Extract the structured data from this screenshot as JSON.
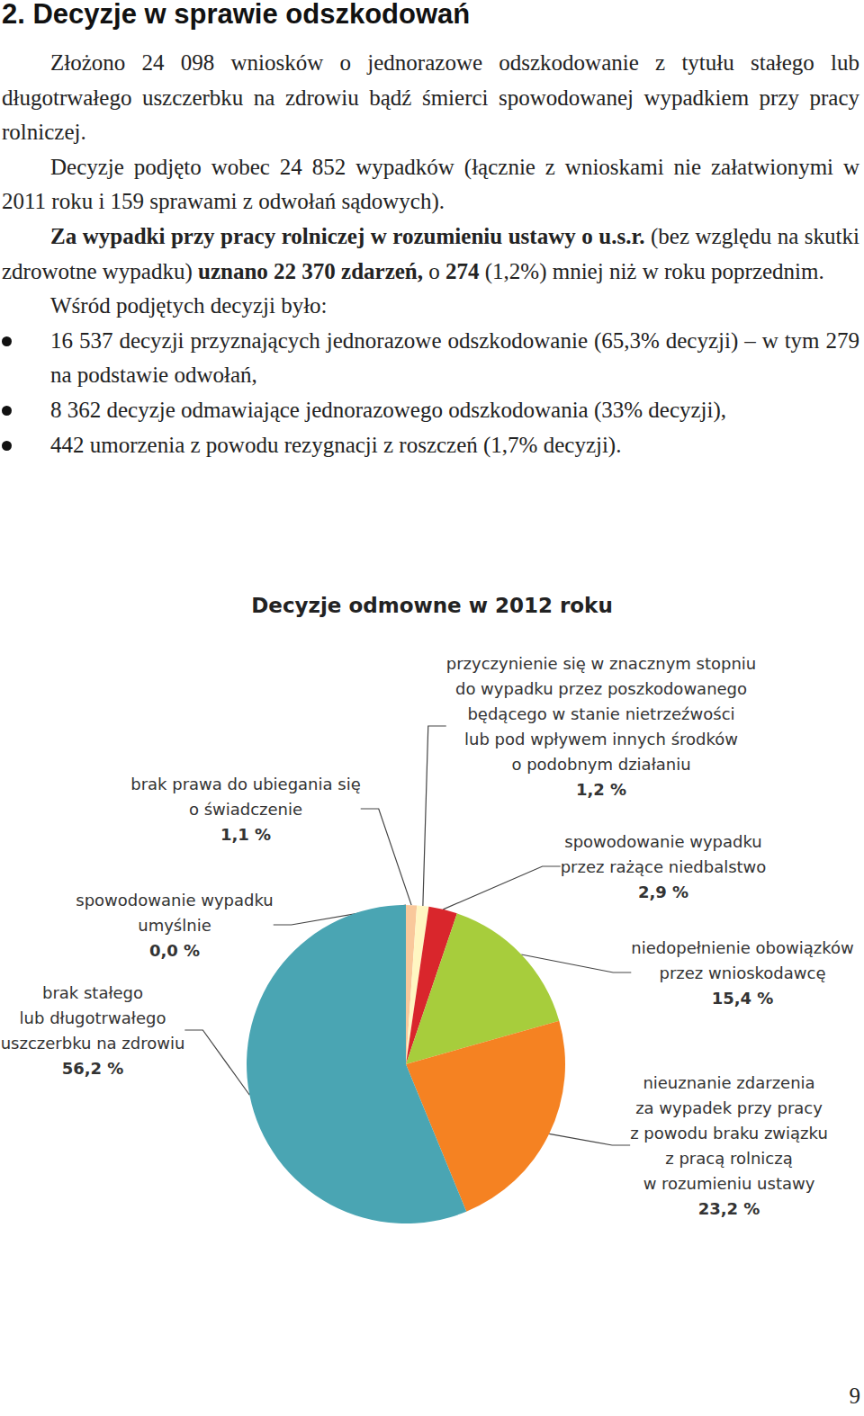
{
  "heading": "2. Decyzje w sprawie odszkodowań",
  "paragraphs": [
    [
      {
        "text": "Złożono 24 098 wniosków o jednorazowe odszkodowanie z tytułu stałego lub długotrwałego uszczerbku na zdrowiu bądź śmierci spowodowanej wypadkiem przy pracy rolniczej."
      }
    ],
    [
      {
        "text": "Decyzje podjęto wobec 24 852 wypadków (łącznie z wnioskami nie załatwionymi w 2011 roku i 159 sprawami z odwołań sądowych)."
      }
    ],
    [
      {
        "text": "Za wypadki przy pracy rolniczej w rozumieniu ustawy o u.s.r.",
        "bold": true
      },
      {
        "text": " (bez względu na skutki zdrowotne wypadku) "
      },
      {
        "text": "uznano 22 370 zdarzeń,",
        "bold": true
      },
      {
        "text": " o "
      },
      {
        "text": "274",
        "bold": true
      },
      {
        "text": " (1,2%) mniej niż w roku poprzednim."
      }
    ],
    [
      {
        "text": "Wśród podjętych decyzji było:"
      }
    ]
  ],
  "bullets": [
    "16 537 decyzji przyznających jednorazowe odszkodowanie (65,3% decyzji) – w tym 279 na podstawie odwołań,",
    "8 362 decyzje odmawiające jednorazowego odszkodowania (33% decyzji),",
    "442 umorzenia z powodu rezygnacji z roszczeń (1,7% decyzji)."
  ],
  "chart_data": {
    "type": "pie",
    "title": "Decyzje odmowne w 2012 roku",
    "categories": [
      "brak prawa do ubiegania się\no świadczenie",
      "przyczynienie się w znacznym stopniu\ndo wypadku przez poszkodowanego\nbędącego w stanie nietrzeźwości\nlub pod wpływem innych środków\no podobnym działaniu",
      "spowodowanie wypadku\nprzez rażące niedbalstwo",
      "niedopełnienie obowiązków\nprzez wnioskodawcę",
      "nieuznanie zdarzenia\nza wypadek przy pracy\nz powodu braku związku\nz pracą rolniczą\nw rozumieniu ustawy",
      "brak stałego\nlub długotrwałego\nuszczerbku na zdrowiu",
      "spowodowanie wypadku\numyślnie"
    ],
    "values": [
      1.1,
      1.2,
      2.9,
      15.4,
      23.2,
      56.2,
      0.0
    ],
    "value_labels": [
      "1,1 %",
      "1,2 %",
      "2,9 %",
      "15,4 %",
      "23,2 %",
      "56,2 %",
      "0,0 %"
    ],
    "colors": [
      "#f9c89b",
      "#fff6c2",
      "#d9262c",
      "#a7cd3c",
      "#f58222",
      "#4aa5b3",
      "#7f7f7f"
    ],
    "data_labels": true
  },
  "page_number": "9"
}
